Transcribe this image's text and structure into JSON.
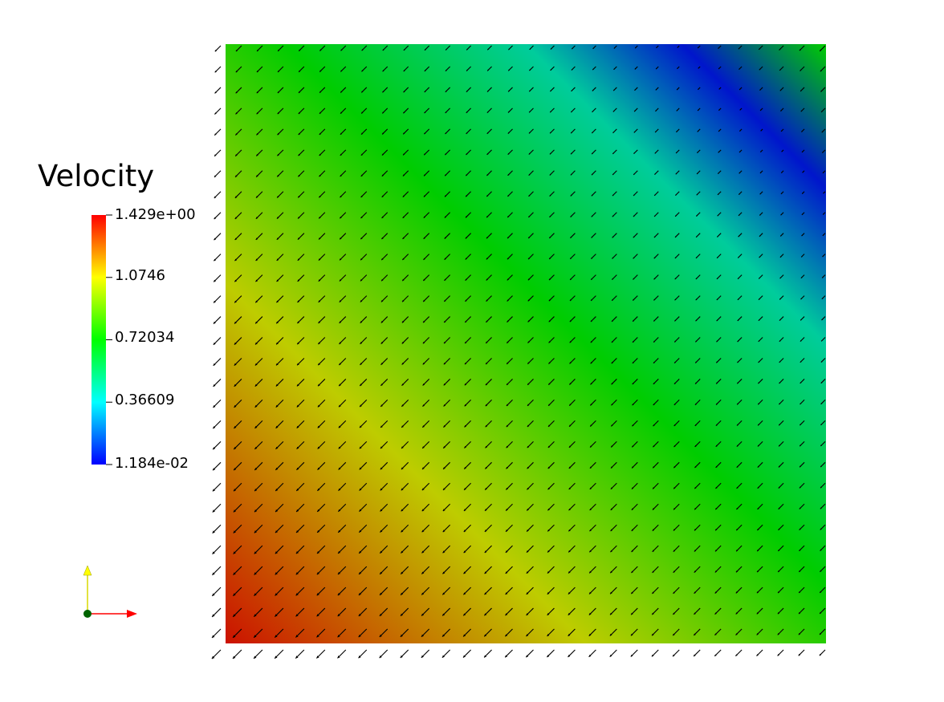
{
  "chart_data": {
    "type": "heatmap",
    "field": "Velocity",
    "title": "Velocity",
    "colorbar": {
      "min": 0.01184,
      "max": 1.429,
      "tick_labels": [
        "1.429e+00",
        "1.0746",
        "0.72034",
        "0.36609",
        "1.184e-02"
      ],
      "tick_values": [
        1.429,
        1.0746,
        0.72034,
        0.36609,
        0.01184
      ],
      "colormap": [
        "#0000ff",
        "#00ffff",
        "#00ff00",
        "#ffff00",
        "#ff0000"
      ]
    },
    "x_range": [
      0,
      1
    ],
    "y_range": [
      0,
      1
    ],
    "field_gradient_stops": [
      {
        "t": 0.0,
        "value": 1.4
      },
      {
        "t": 0.3,
        "value": 1.05
      },
      {
        "t": 0.55,
        "value": 0.72
      },
      {
        "t": 0.75,
        "value": 0.45
      },
      {
        "t": 0.88,
        "value": 0.05
      },
      {
        "t": 1.0,
        "value": 0.72
      }
    ],
    "glyphs": {
      "grid": [
        30,
        30
      ],
      "direction": "south-west"
    },
    "orientation_axes": {
      "x_color": "#ff0000",
      "y_color": "#ffff00",
      "origin_color": "#006400"
    }
  }
}
